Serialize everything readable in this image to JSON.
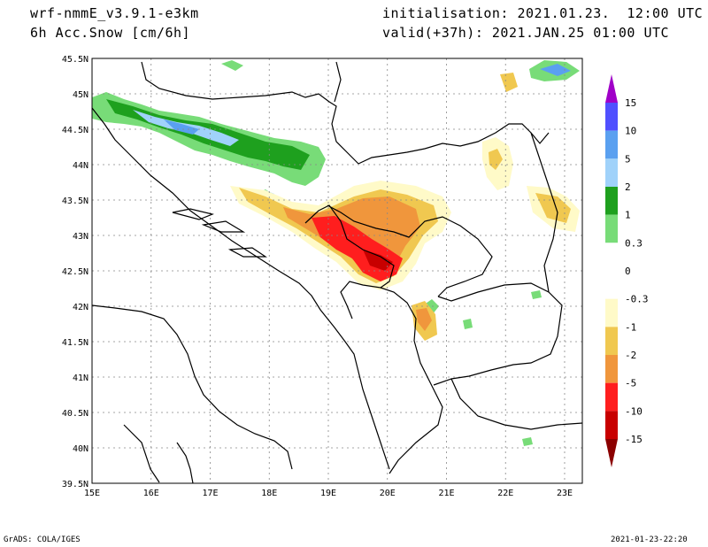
{
  "header": {
    "model": "wrf-nmmE_v3.9.1-e3km",
    "variable": "6h Acc.Snow [cm/6h]",
    "init": "initialisation: 2021.01.23.  12:00 UTC",
    "valid": "valid(+37h): 2021.JAN.25 01:00 UTC"
  },
  "footer": {
    "software": "GrADS: COLA/IGES",
    "timestamp": "2021-01-23-22:20"
  },
  "map": {
    "lon_ticks": [
      "15E",
      "16E",
      "17E",
      "18E",
      "19E",
      "20E",
      "21E",
      "22E",
      "23E"
    ],
    "lat_ticks": [
      "39.5N",
      "40N",
      "40.5N",
      "41N",
      "41.5N",
      "42N",
      "42.5N",
      "43N",
      "43.5N",
      "44N",
      "44.5N",
      "45N",
      "45.5N"
    ],
    "lon_range": [
      15,
      23.3
    ],
    "lat_range": [
      39.5,
      45.5
    ]
  },
  "colorbar": {
    "levels": [
      "15",
      "10",
      "5",
      "2",
      "1",
      "0.3",
      "0",
      "-0.3",
      "-1",
      "-2",
      "-5",
      "-10",
      "-15"
    ],
    "colors": [
      "#a000c8",
      "#5050ff",
      "#5aa0f0",
      "#a0d2fa",
      "#1ea01e",
      "#78dc78",
      "#ffffff",
      "#ffffff",
      "#fffac8",
      "#f0c850",
      "#f0963c",
      "#ff1e1e",
      "#c80000",
      "#8b0000"
    ]
  },
  "colors": {
    "grid": "#888888",
    "border": "#000000"
  }
}
